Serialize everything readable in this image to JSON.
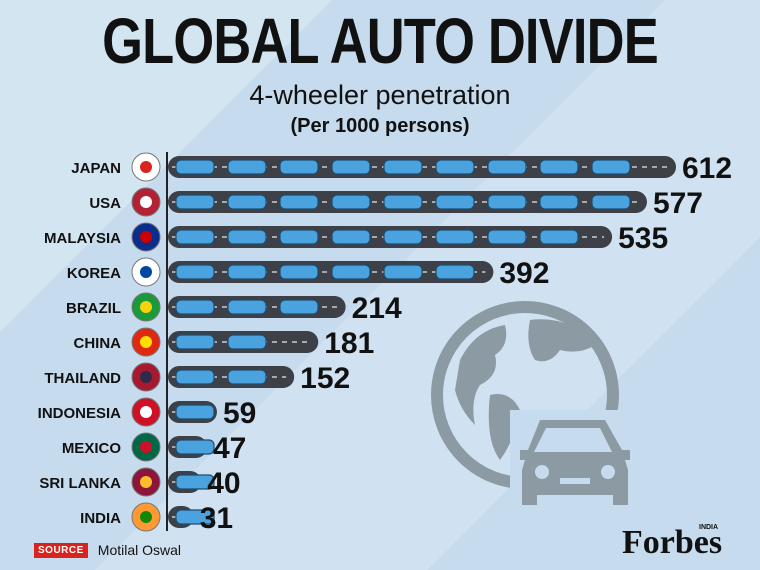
{
  "title": "GLOBAL AUTO DIVIDE",
  "subtitle": "4-wheeler penetration",
  "unit": "(Per 1000 persons)",
  "source": {
    "tag": "SOURCE",
    "text": "Motilal Oswal"
  },
  "brand": {
    "name": "Forbes",
    "edition": "INDIA"
  },
  "icons": [
    "globe-car-icon"
  ],
  "colors": {
    "road": "#3d4047",
    "car": "#4aa3df",
    "accent": "#d9231e",
    "deco": "#8b9aa3"
  },
  "chart_data": {
    "type": "bar",
    "categories": [
      "JAPAN",
      "USA",
      "MALAYSIA",
      "KOREA",
      "BRAZIL",
      "CHINA",
      "THAILAND",
      "INDONESIA",
      "MEXICO",
      "SRI LANKA",
      "INDIA"
    ],
    "values": [
      612,
      577,
      535,
      392,
      214,
      181,
      152,
      59,
      47,
      40,
      31
    ],
    "value_labels": [
      "612",
      "577",
      "535",
      "392",
      "214",
      "181",
      "152",
      "59",
      "47",
      "40",
      "31"
    ],
    "orientation": "horizontal",
    "xlim": [
      0,
      612
    ]
  }
}
